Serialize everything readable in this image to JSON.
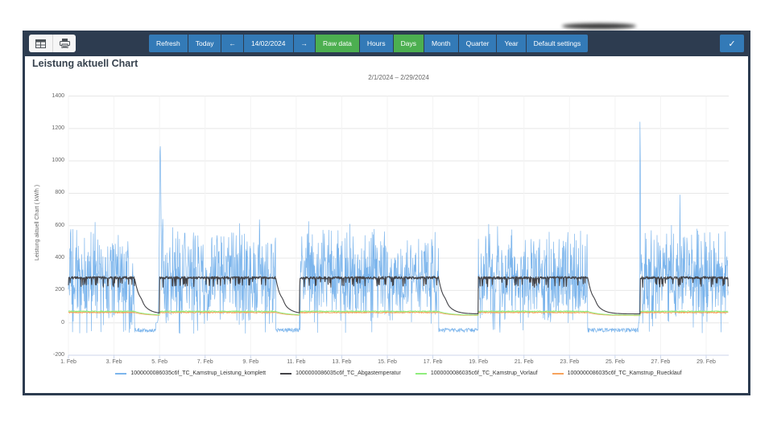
{
  "toolbar": {
    "icon_buttons": [
      {
        "icon": "table-icon"
      },
      {
        "icon": "print-icon"
      }
    ],
    "buttons": [
      {
        "label": "Refresh",
        "variant": "blue"
      },
      {
        "label": "Today",
        "variant": "blue"
      },
      {
        "label": "←",
        "variant": "blue",
        "icon": "arrow-left-icon"
      },
      {
        "label": "14/02/2024",
        "variant": "blue"
      },
      {
        "label": "→",
        "variant": "blue",
        "icon": "arrow-right-icon"
      },
      {
        "label": "Raw data",
        "variant": "green"
      },
      {
        "label": "Hours",
        "variant": "blue"
      },
      {
        "label": "Days",
        "variant": "green"
      },
      {
        "label": "Month",
        "variant": "blue"
      },
      {
        "label": "Quarter",
        "variant": "blue"
      },
      {
        "label": "Year",
        "variant": "blue"
      },
      {
        "label": "Default settings",
        "variant": "blue"
      }
    ],
    "confirm_icon": "check",
    "confirm_glyph": "✓",
    "colors": {
      "bar": "#2d3c50",
      "blue": "#337ab7",
      "green": "#4caf50"
    }
  },
  "panel": {
    "title": "Leistung aktuell Chart"
  },
  "chart_data": {
    "type": "line",
    "subtitle": "2/1/2024 – 2/29/2024",
    "ylabel": "Leistung aktuell Chart ( kW/h )",
    "ylim": [
      -200,
      1400
    ],
    "yticks": [
      -200,
      0,
      200,
      400,
      600,
      800,
      1000,
      1200,
      1400
    ],
    "xticks": [
      {
        "day": 1,
        "label": "1. Feb"
      },
      {
        "day": 3,
        "label": "3. Feb"
      },
      {
        "day": 5,
        "label": "5. Feb"
      },
      {
        "day": 7,
        "label": "7. Feb"
      },
      {
        "day": 9,
        "label": "9. Feb"
      },
      {
        "day": 11,
        "label": "11. Feb"
      },
      {
        "day": 13,
        "label": "13. Feb"
      },
      {
        "day": 15,
        "label": "15. Feb"
      },
      {
        "day": 17,
        "label": "17. Feb"
      },
      {
        "day": 19,
        "label": "19. Feb"
      },
      {
        "day": 21,
        "label": "21. Feb"
      },
      {
        "day": 23,
        "label": "23. Feb"
      },
      {
        "day": 25,
        "label": "25. Feb"
      },
      {
        "day": 27,
        "label": "27. Feb"
      },
      {
        "day": 29,
        "label": "29. Feb"
      }
    ],
    "x_domain": [
      1,
      29.97
    ],
    "grid": true,
    "legend_position": "bottom",
    "active_periods": [
      [
        1.0,
        3.9
      ],
      [
        5.0,
        10.1
      ],
      [
        11.15,
        17.25
      ],
      [
        19.0,
        23.8
      ],
      [
        26.1,
        29.97
      ]
    ],
    "series": [
      {
        "name": "1000000086035c6f_TC_Kamstrup_Leistung_komplett",
        "color": "#7cb5ec",
        "kind": "power",
        "active_mean": 280,
        "active_spread": 330,
        "off_mean": -45,
        "off_spread": 13,
        "spikes": [
          {
            "day": 5.03,
            "peak": 1100,
            "width": 0.05
          },
          {
            "day": 5.14,
            "peak": 640,
            "width": 0.04
          },
          {
            "day": 26.1,
            "peak": 1340,
            "width": 0.018
          },
          {
            "day": 27.85,
            "peak": 790,
            "width": 0.02
          }
        ]
      },
      {
        "name": "1000000086035c6f_TC_Abgastemperatur",
        "color": "#434348",
        "kind": "temperature",
        "active_mean": 278,
        "active_noise": 16,
        "dip_chance": 0.1,
        "dip_depth": 55,
        "off_floor": 55,
        "off_decay": 0.3,
        "off_shoulder": true
      },
      {
        "name": "1000000086035c6f_TC_Kamstrup_Vorlauf",
        "color": "#90ed7d",
        "kind": "temperature",
        "active_mean": 71,
        "active_noise": 6,
        "dip_chance": 0,
        "dip_depth": 0,
        "off_floor": 47,
        "off_decay": 0.5,
        "off_shoulder": false
      },
      {
        "name": "1000000086035c6f_TC_Kamstrup_Ruecklauf",
        "color": "#f7a35c",
        "kind": "temperature",
        "active_mean": 64,
        "active_noise": 7,
        "dip_chance": 0,
        "dip_depth": 0,
        "off_floor": 45,
        "off_decay": 0.5,
        "off_shoulder": false
      }
    ]
  }
}
